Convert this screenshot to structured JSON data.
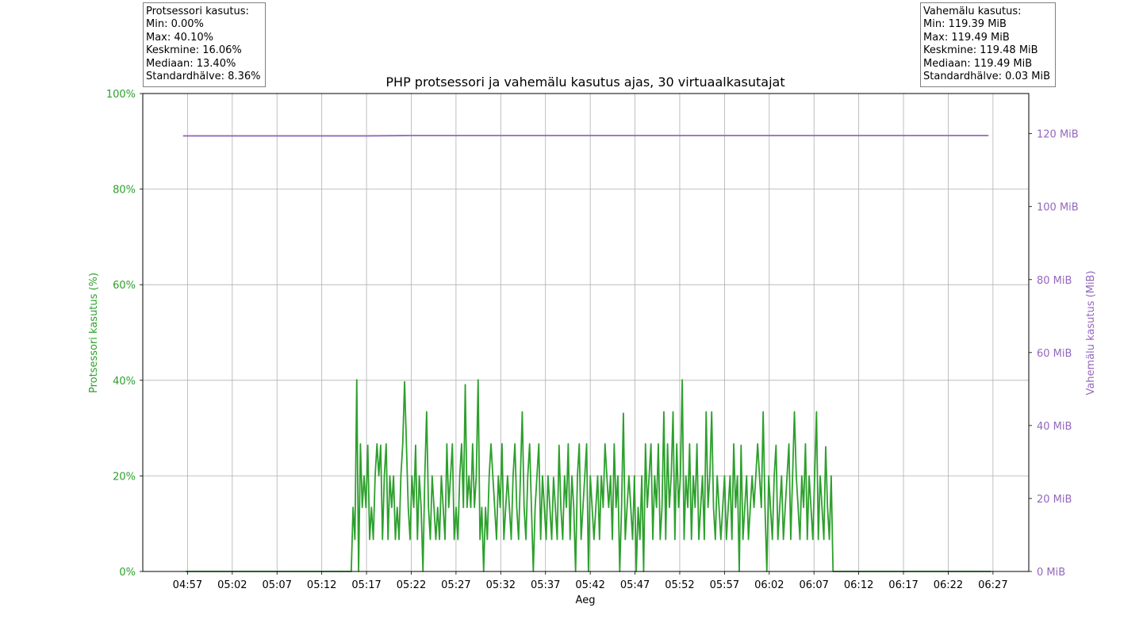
{
  "chart_data": {
    "type": "line",
    "title": "PHP protsessori ja vahemälu kasutus ajas, 30 virtuaalkasutajat",
    "xlabel": "Aeg",
    "ylabel_left": "Protsessori kasutus (%)",
    "ylabel_right": "Vahemälu kasutus (MiB)",
    "x_ticks": [
      "04:57",
      "05:02",
      "05:07",
      "05:12",
      "05:17",
      "05:22",
      "05:27",
      "05:32",
      "05:37",
      "05:42",
      "05:47",
      "05:52",
      "05:57",
      "06:02",
      "06:07",
      "06:12",
      "06:17",
      "06:22",
      "06:27"
    ],
    "y_left_ticks": [
      "0%",
      "20%",
      "40%",
      "60%",
      "80%",
      "100%"
    ],
    "y_right_ticks": [
      "0 MiB",
      "20 MiB",
      "40 MiB",
      "60 MiB",
      "80 MiB",
      "100 MiB",
      "120 MiB"
    ],
    "ylim_left": [
      0,
      100
    ],
    "ylim_right": [
      0,
      131
    ],
    "x_range_minutes": [
      "04:52",
      "06:31"
    ],
    "grid": true,
    "colors": {
      "cpu": "#2ca02c",
      "memory": "#9467bd",
      "axis_left": "#2ca02c",
      "axis_right": "#9467bd"
    },
    "series": [
      {
        "axis": "left",
        "x_start": "04:56.8",
        "x_end": "06:26.8",
        "note_resolution_seconds": 10,
        "values": [
          0,
          0,
          0,
          0,
          0,
          0,
          0,
          0,
          0,
          0,
          0,
          0,
          0,
          0,
          0,
          0,
          0,
          0,
          0,
          0,
          0,
          0,
          0,
          0,
          0,
          0,
          0,
          0,
          0,
          0,
          0,
          0,
          0,
          0,
          0,
          0,
          0,
          0,
          0,
          0,
          0,
          0,
          0,
          0,
          0,
          0,
          0,
          0,
          0,
          0,
          0,
          0,
          0,
          0,
          0,
          0,
          0,
          0,
          0,
          0,
          0,
          0,
          0,
          0,
          0,
          0,
          0,
          0,
          0,
          0,
          0,
          0,
          0,
          0,
          0,
          0,
          0,
          0,
          0,
          0,
          0,
          0,
          0,
          0,
          0,
          0,
          0,
          0,
          0,
          0,
          0,
          13.4,
          6.7,
          40.1,
          0,
          26.7,
          13.4,
          20,
          13.4,
          26.4,
          6.7,
          13.4,
          6.7,
          20,
          26.7,
          20,
          26.4,
          6.7,
          20,
          26.7,
          6.7,
          20,
          13.4,
          20,
          6.7,
          13.4,
          6.7,
          20,
          26.7,
          39.7,
          26.7,
          13.4,
          6.7,
          20,
          13.4,
          26.4,
          6.7,
          20,
          13.4,
          0,
          20,
          33.4,
          13.4,
          6.7,
          20,
          13.4,
          6.7,
          13.4,
          6.7,
          20,
          13.4,
          6.7,
          26.7,
          13.4,
          20,
          26.7,
          6.7,
          13.4,
          6.7,
          20,
          26.7,
          13.4,
          39.1,
          13.4,
          20,
          13.4,
          26.7,
          13.4,
          20,
          40.1,
          6.7,
          13.4,
          0,
          13.4,
          6.7,
          20,
          26.7,
          20,
          13.4,
          6.7,
          20,
          13.4,
          26.7,
          6.7,
          13.4,
          20,
          13.4,
          6.7,
          20,
          26.7,
          13.4,
          6.7,
          20,
          33.4,
          13.4,
          6.7,
          20,
          26.7,
          13.4,
          0,
          13.4,
          20,
          26.7,
          6.7,
          20,
          13.4,
          6.7,
          20,
          13.4,
          6.7,
          19.7,
          13.4,
          6.7,
          26.4,
          13.4,
          6.7,
          20,
          13.4,
          26.7,
          6.7,
          20,
          13.4,
          0,
          20,
          26.7,
          6.7,
          13.4,
          20,
          26.7,
          0,
          20,
          13.4,
          6.7,
          13.4,
          20,
          6.7,
          20,
          13.4,
          26.7,
          20,
          13.4,
          20,
          6.7,
          26.7,
          13.4,
          20,
          0,
          13.4,
          33.1,
          6.7,
          13.4,
          20,
          13.4,
          6.7,
          20,
          0,
          13.4,
          6.7,
          20,
          0,
          26.7,
          13.4,
          20,
          26.7,
          6.7,
          20,
          13.4,
          26.7,
          6.7,
          13.4,
          33.4,
          6.7,
          26.7,
          13.4,
          20,
          33.4,
          6.7,
          26.7,
          13.4,
          20,
          40.1,
          6.7,
          20,
          13.4,
          26.7,
          6.7,
          20,
          13.4,
          26.7,
          6.7,
          13.4,
          20,
          6.7,
          33.4,
          13.4,
          20,
          33.4,
          13.4,
          6.7,
          20,
          13.4,
          6.7,
          13.4,
          20,
          6.7,
          13.4,
          20,
          6.7,
          26.7,
          13.4,
          20,
          0,
          26.4,
          6.7,
          13.4,
          20,
          6.7,
          13.4,
          20,
          13.4,
          20,
          26.7,
          20,
          13.4,
          33.4,
          13.4,
          0,
          20,
          13.4,
          6.7,
          20,
          26.4,
          6.7,
          13.4,
          20,
          6.7,
          13.4,
          20,
          26.7,
          6.7,
          20,
          33.4,
          20,
          13.4,
          6.7,
          20,
          13.4,
          26.7,
          6.7,
          20,
          13.4,
          6.7,
          20,
          33.4,
          6.7,
          20,
          13.4,
          6.7,
          26.1,
          13.4,
          6.7,
          20,
          0,
          0,
          0,
          0,
          0,
          0,
          0,
          0,
          0,
          0,
          0,
          0,
          0,
          0,
          0,
          0,
          0,
          0,
          0,
          0,
          0,
          0,
          0,
          0,
          0,
          0,
          0,
          0,
          0,
          0,
          0,
          0,
          0,
          0,
          0,
          0,
          0,
          0,
          0,
          0,
          0,
          0,
          0,
          0,
          0,
          0,
          0,
          0,
          0,
          0,
          0,
          0,
          0,
          0,
          0,
          0,
          0,
          0,
          0,
          0,
          0,
          0,
          0,
          0,
          0,
          0,
          0,
          0,
          0,
          0,
          0,
          0,
          0,
          0,
          0,
          0,
          0,
          0,
          0,
          0,
          0,
          0,
          0,
          0,
          0,
          0,
          0
        ]
      },
      {
        "axis": "right",
        "x": [
          "04:56.5",
          "05:17.0",
          "05:22.0",
          "06:26.5"
        ],
        "values": [
          119.39,
          119.39,
          119.49,
          119.49
        ]
      }
    ],
    "stats_boxes": [
      {
        "lines": [
          "Protsessori kasutus:",
          "Min: 0.00%",
          "Max: 40.10%",
          "Keskmine: 16.06%",
          "Mediaan: 13.40%",
          "Standardhälve: 8.36%"
        ]
      },
      {
        "lines": [
          "Vahemälu kasutus:",
          "Min: 119.39 MiB",
          "Max: 119.49 MiB",
          "Keskmine: 119.48 MiB",
          "Mediaan: 119.49 MiB",
          "Standardhälve: 0.03 MiB"
        ]
      }
    ]
  }
}
